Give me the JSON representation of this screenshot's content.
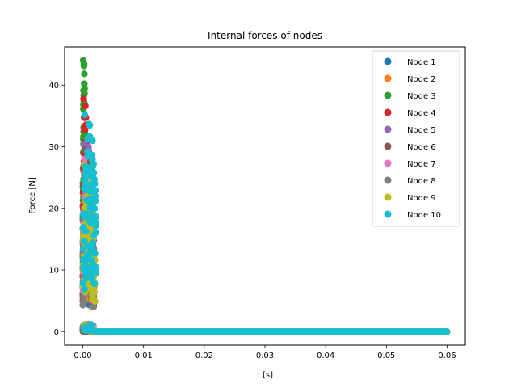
{
  "chart_data": {
    "type": "scatter",
    "title": "Internal forces of nodes",
    "xlabel": "t [s]",
    "ylabel": "Force [N]",
    "xlim": [
      -0.003,
      0.063
    ],
    "ylim": [
      -2.2,
      46.2
    ],
    "xticks": [
      0.0,
      0.01,
      0.02,
      0.03,
      0.04,
      0.05,
      0.06
    ],
    "xtick_labels": [
      "0.00",
      "0.01",
      "0.02",
      "0.03",
      "0.04",
      "0.05",
      "0.06"
    ],
    "yticks": [
      0,
      10,
      20,
      30,
      40
    ],
    "ytick_labels": [
      "0",
      "10",
      "20",
      "30",
      "40"
    ],
    "grid": false,
    "legend_position": "top-right",
    "series": [
      {
        "name": "Node 1",
        "color": "#1f77b4",
        "peak_force": 22.0,
        "active_until": 0.0012
      },
      {
        "name": "Node 2",
        "color": "#ff7f0e",
        "peak_force": 24.0,
        "active_until": 0.0016
      },
      {
        "name": "Node 3",
        "color": "#2ca02c",
        "peak_force": 44.0,
        "active_until": 0.0004
      },
      {
        "name": "Node 4",
        "color": "#d62728",
        "peak_force": 37.8,
        "active_until": 0.0008
      },
      {
        "name": "Node 5",
        "color": "#9467bd",
        "peak_force": 30.3,
        "active_until": 0.0018
      },
      {
        "name": "Node 6",
        "color": "#8c564b",
        "peak_force": 29.5,
        "active_until": 0.0018
      },
      {
        "name": "Node 7",
        "color": "#e377c2",
        "peak_force": 28.0,
        "active_until": 0.0018
      },
      {
        "name": "Node 8",
        "color": "#7f7f7f",
        "peak_force": 26.0,
        "active_until": 0.0018
      },
      {
        "name": "Node 9",
        "color": "#bcbd22",
        "peak_force": 27.0,
        "active_until": 0.002
      },
      {
        "name": "Node 10",
        "color": "#17becf",
        "peak_force": 35.2,
        "active_until": 0.0022
      }
    ],
    "baseline": {
      "t_start": 0.0,
      "t_end": 0.06,
      "force": 0.0
    }
  }
}
